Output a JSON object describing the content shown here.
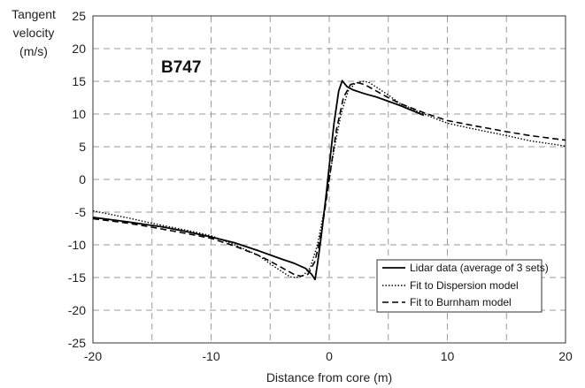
{
  "chart_data": {
    "type": "line",
    "annotation": "B747",
    "ylabel_lines": [
      "Tangent",
      "velocity",
      "(m/s)"
    ],
    "xlabel": "Distance from core (m)",
    "xlim": [
      -20,
      20
    ],
    "ylim": [
      -25,
      25
    ],
    "x_ticks": [
      -20,
      -10,
      0,
      10,
      20
    ],
    "y_ticks": [
      25,
      20,
      15,
      10,
      5,
      0,
      -5,
      -10,
      -15,
      -20,
      -25
    ],
    "grid": true,
    "legend_position": "bottom-right",
    "series": [
      {
        "name": "Lidar data (average of 3 sets)",
        "style": "solid",
        "color": "#000000",
        "points": [
          [
            -20,
            -5.8
          ],
          [
            -17,
            -6.5
          ],
          [
            -14,
            -7.3
          ],
          [
            -12,
            -8.0
          ],
          [
            -10,
            -8.8
          ],
          [
            -8,
            -9.7
          ],
          [
            -6,
            -10.9
          ],
          [
            -4,
            -12.2
          ],
          [
            -3,
            -12.8
          ],
          [
            -2,
            -13.6
          ],
          [
            -1.5,
            -14.5
          ],
          [
            -1.2,
            -15.3
          ],
          [
            -1.0,
            -13.0
          ],
          [
            -0.7,
            -9.0
          ],
          [
            -0.3,
            -3.0
          ],
          [
            0,
            2.0
          ],
          [
            0.4,
            8.5
          ],
          [
            0.8,
            13.5
          ],
          [
            1.1,
            15.1
          ],
          [
            1.5,
            14.2
          ],
          [
            2,
            13.7
          ],
          [
            3,
            13.1
          ],
          [
            4,
            12.6
          ],
          [
            6,
            11.3
          ],
          [
            8,
            9.8
          ]
        ]
      },
      {
        "name": "Fit to Dispersion model",
        "style": "dotted",
        "color": "#000000",
        "points": [
          [
            -20,
            -4.8
          ],
          [
            -17,
            -5.9
          ],
          [
            -15,
            -6.7
          ],
          [
            -12,
            -7.8
          ],
          [
            -10,
            -8.6
          ],
          [
            -8,
            -10.0
          ],
          [
            -6,
            -11.6
          ],
          [
            -5,
            -12.9
          ],
          [
            -4,
            -14.1
          ],
          [
            -3.3,
            -14.9
          ],
          [
            -2.8,
            -15.0
          ],
          [
            -2.2,
            -14.7
          ],
          [
            -1.6,
            -13.5
          ],
          [
            -1.0,
            -10.0
          ],
          [
            -0.4,
            -4.5
          ],
          [
            0,
            0
          ],
          [
            0.4,
            4.5
          ],
          [
            1.0,
            10.0
          ],
          [
            1.6,
            13.5
          ],
          [
            2.2,
            14.7
          ],
          [
            2.8,
            15.0
          ],
          [
            3.3,
            14.9
          ],
          [
            4,
            14.1
          ],
          [
            5,
            12.9
          ],
          [
            6,
            11.6
          ],
          [
            8,
            10.0
          ],
          [
            10,
            8.6
          ],
          [
            12,
            7.8
          ],
          [
            15,
            6.7
          ],
          [
            17,
            5.9
          ],
          [
            20,
            5.1
          ]
        ]
      },
      {
        "name": "Fit to Burnham model",
        "style": "dashed",
        "color": "#000000",
        "points": [
          [
            -20,
            -6.0
          ],
          [
            -17,
            -6.7
          ],
          [
            -15,
            -7.3
          ],
          [
            -12,
            -8.3
          ],
          [
            -10,
            -9.0
          ],
          [
            -8,
            -10.2
          ],
          [
            -6,
            -11.6
          ],
          [
            -5,
            -12.5
          ],
          [
            -4,
            -13.5
          ],
          [
            -3,
            -14.5
          ],
          [
            -2.4,
            -14.8
          ],
          [
            -1.8,
            -14.5
          ],
          [
            -1.2,
            -12.5
          ],
          [
            -0.6,
            -7.5
          ],
          [
            0,
            0
          ],
          [
            0.6,
            7.5
          ],
          [
            1.2,
            12.5
          ],
          [
            1.8,
            14.5
          ],
          [
            2.4,
            14.8
          ],
          [
            3,
            14.5
          ],
          [
            4,
            13.5
          ],
          [
            5,
            12.5
          ],
          [
            6,
            11.6
          ],
          [
            8,
            10.2
          ],
          [
            10,
            9.0
          ],
          [
            12,
            8.3
          ],
          [
            15,
            7.3
          ],
          [
            17,
            6.7
          ],
          [
            20,
            6.0
          ]
        ]
      }
    ]
  }
}
